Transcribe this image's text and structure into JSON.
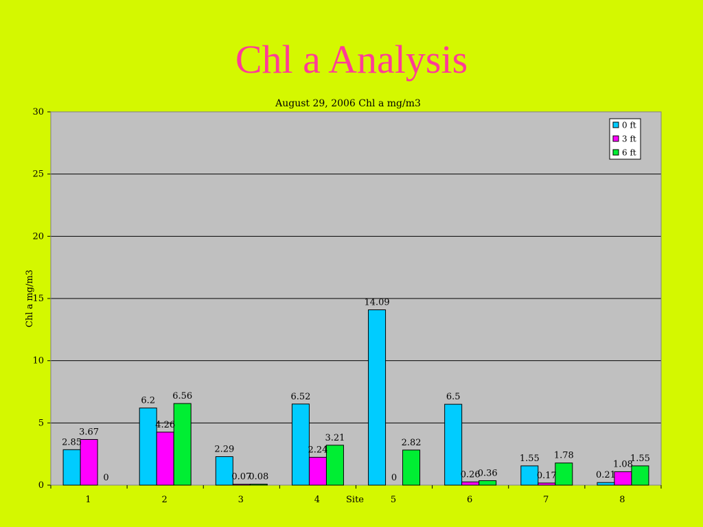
{
  "slide": {
    "title": "Chl a Analysis"
  },
  "chart_data": {
    "type": "bar",
    "title": "August 29, 2006 Chl a mg/m3",
    "xlabel": "Site",
    "ylabel": "Chl a mg/m3",
    "ylim": [
      0,
      30
    ],
    "yticks": [
      0,
      5,
      10,
      15,
      20,
      25,
      30
    ],
    "categories": [
      "1",
      "2",
      "3",
      "4",
      "5",
      "6",
      "7",
      "8"
    ],
    "series": [
      {
        "name": "0 ft",
        "color": "#00ccff",
        "values": [
          2.85,
          6.2,
          2.29,
          6.52,
          14.09,
          6.5,
          1.55,
          0.21
        ]
      },
      {
        "name": "3 ft",
        "color": "#ff00ff",
        "values": [
          3.67,
          4.26,
          0.07,
          2.24,
          null,
          0.26,
          0.17,
          1.08
        ]
      },
      {
        "name": "6 ft",
        "color": "#00ee33",
        "values": [
          0,
          6.56,
          0.08,
          3.21,
          2.82,
          0.36,
          1.78,
          1.55
        ]
      }
    ],
    "data_labels": [
      [
        "2.85",
        "6.2",
        "2.29",
        "6.52",
        "14.09",
        "6.5",
        "1.55",
        "0.21"
      ],
      [
        "3.67",
        "4.26",
        "0.07",
        "2.24",
        "0",
        "0.26",
        "0.17",
        "1.08"
      ],
      [
        "0",
        "6.56",
        "0.08",
        "3.21",
        "2.82",
        "0.36",
        "1.78",
        "1.55"
      ]
    ],
    "grid": true,
    "legend": "top-right",
    "plot_background": "#c0c0c0"
  }
}
